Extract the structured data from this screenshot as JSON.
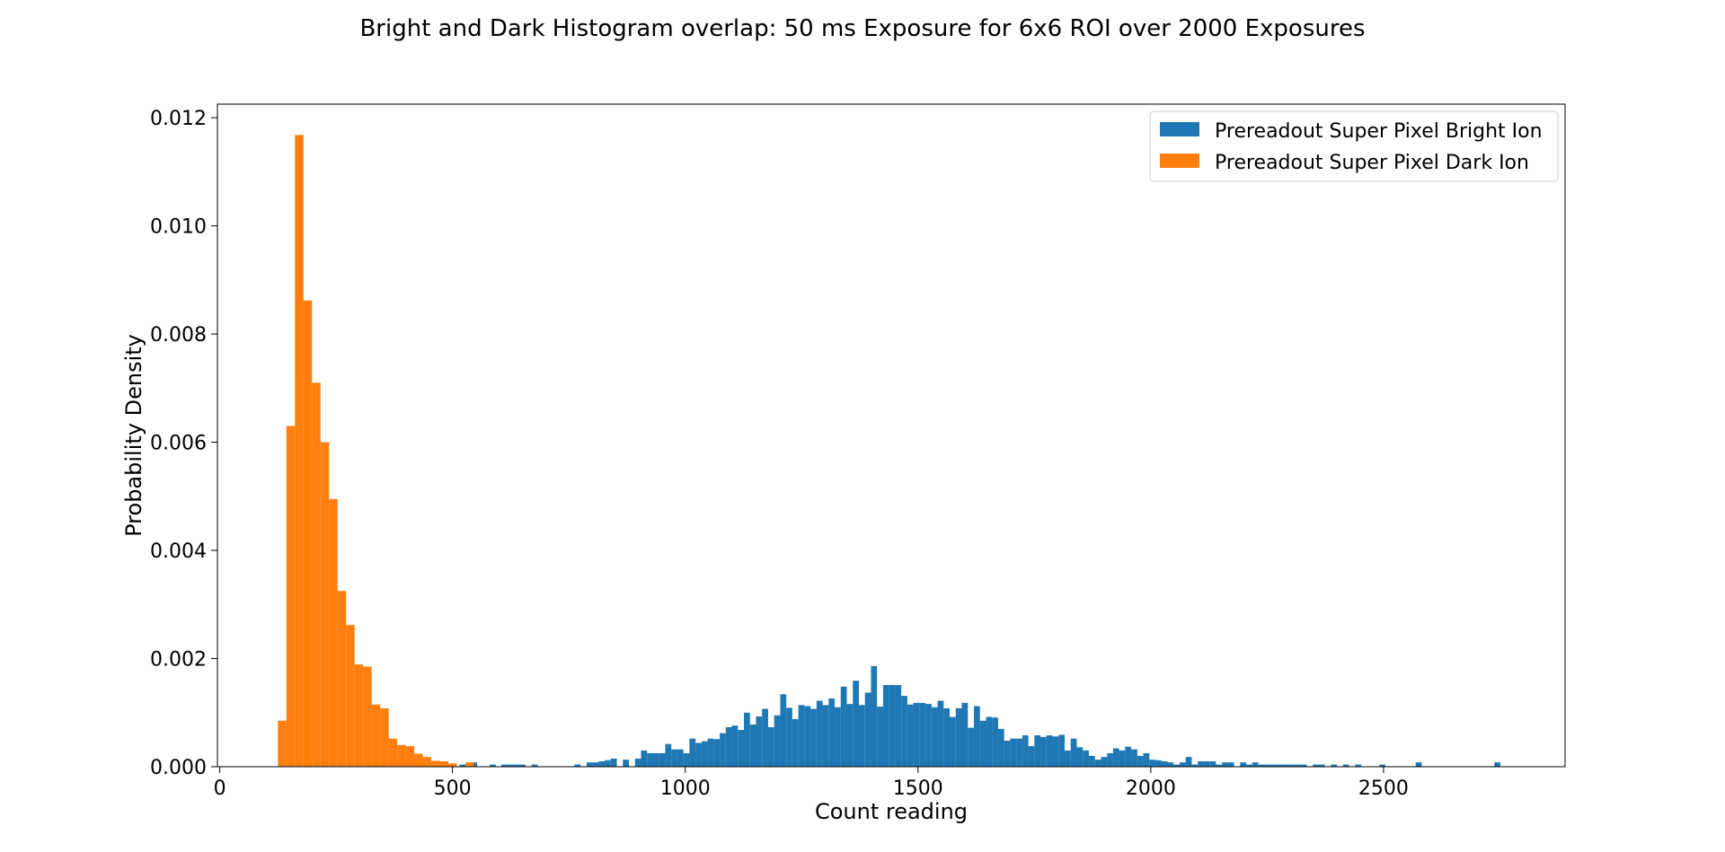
{
  "chart_data": {
    "type": "bar",
    "title": "Bright and Dark Histogram overlap: 50 ms Exposure for 6x6 ROI over 2000 Exposures",
    "xlabel": "Count reading",
    "ylabel": "Probability Density",
    "xlim": [
      -5,
      2890
    ],
    "ylim": [
      0,
      0.01225
    ],
    "xticks": [
      0,
      500,
      1000,
      1500,
      2000,
      2500
    ],
    "xtick_labels": [
      "0",
      "500",
      "1000",
      "1500",
      "2000",
      "2500"
    ],
    "yticks": [
      0,
      0.002,
      0.004,
      0.006,
      0.008,
      0.01,
      0.012
    ],
    "ytick_labels": [
      "0.000",
      "0.002",
      "0.004",
      "0.006",
      "0.008",
      "0.010",
      "0.012"
    ],
    "grid": false,
    "legend_position": "top-right",
    "series": [
      {
        "name": "Prereadout Super Pixel Bright Ion",
        "color": "#1f77b4",
        "bin_width": 13.0,
        "bins_start": [
          385,
          515,
          540,
          580,
          605,
          618,
          631,
          644,
          670,
          762,
          788,
          801,
          814,
          827,
          840,
          866,
          892,
          905,
          918,
          931,
          944,
          957,
          970,
          983,
          996,
          1009,
          1022,
          1035,
          1048,
          1061,
          1074,
          1087,
          1100,
          1113,
          1126,
          1139,
          1152,
          1165,
          1178,
          1191,
          1204,
          1217,
          1230,
          1243,
          1256,
          1269,
          1282,
          1295,
          1308,
          1321,
          1334,
          1347,
          1360,
          1373,
          1386,
          1399,
          1412,
          1425,
          1438,
          1451,
          1464,
          1477,
          1490,
          1503,
          1516,
          1529,
          1542,
          1555,
          1568,
          1581,
          1594,
          1607,
          1620,
          1633,
          1646,
          1659,
          1672,
          1685,
          1698,
          1711,
          1724,
          1737,
          1750,
          1763,
          1776,
          1789,
          1802,
          1815,
          1828,
          1841,
          1854,
          1867,
          1880,
          1893,
          1906,
          1919,
          1932,
          1945,
          1958,
          1971,
          1984,
          1997,
          2010,
          2023,
          2036,
          2049,
          2062,
          2075,
          2088,
          2101,
          2114,
          2127,
          2140,
          2153,
          2166,
          2192,
          2205,
          2218,
          2231,
          2244,
          2257,
          2270,
          2283,
          2296,
          2309,
          2322,
          2348,
          2361,
          2387,
          2413,
          2439,
          2491,
          2569,
          2738
        ],
        "values": [
          4e-05,
          4e-05,
          8e-05,
          4e-05,
          4e-05,
          4e-05,
          4e-05,
          4e-05,
          4e-05,
          4e-05,
          8e-05,
          8e-05,
          0.0001,
          0.00012,
          0.00015,
          0.00013,
          0.00015,
          0.0003,
          0.00025,
          0.00025,
          0.00025,
          0.00042,
          0.00032,
          0.00032,
          0.00025,
          0.00052,
          0.00044,
          0.00047,
          0.00052,
          0.00051,
          0.00062,
          0.00073,
          0.00076,
          0.00068,
          0.001,
          0.00078,
          0.00093,
          0.00107,
          0.00073,
          0.00095,
          0.00134,
          0.00109,
          0.00088,
          0.00114,
          0.00112,
          0.00107,
          0.00122,
          0.00114,
          0.00126,
          0.0011,
          0.00148,
          0.00116,
          0.00159,
          0.00114,
          0.00137,
          0.00186,
          0.00111,
          0.00151,
          0.00151,
          0.00151,
          0.00131,
          0.00115,
          0.00118,
          0.00118,
          0.00116,
          0.0011,
          0.00122,
          0.00108,
          0.00092,
          0.00108,
          0.00118,
          0.00072,
          0.00112,
          0.00085,
          0.00092,
          0.00091,
          0.0007,
          0.00048,
          0.00052,
          0.00052,
          0.00058,
          0.00038,
          0.00058,
          0.00055,
          0.00058,
          0.00056,
          0.00059,
          0.0003,
          0.00052,
          0.00036,
          0.0003,
          0.0002,
          0.00013,
          0.00018,
          0.00025,
          0.00034,
          0.0003,
          0.00037,
          0.00032,
          0.0002,
          0.00025,
          0.00013,
          0.00012,
          0.0001,
          8e-05,
          4e-05,
          8e-05,
          0.00018,
          4e-05,
          0.0001,
          0.0001,
          0.0001,
          4e-05,
          8e-05,
          8e-05,
          8e-05,
          4e-05,
          8e-05,
          4e-05,
          4e-05,
          4e-05,
          4e-05,
          4e-05,
          4e-05,
          4e-05,
          4e-05,
          4e-05,
          4e-05,
          4e-05,
          4e-05,
          4e-05,
          4e-05,
          8e-05,
          8e-05
        ]
      },
      {
        "name": "Prereadout Super Pixel Dark Ion",
        "color": "#ff7f0e",
        "bin_width": 18.3,
        "bins_start": [
          125,
          143.3,
          161.6,
          179.9,
          198.2,
          216.5,
          234.8,
          253.1,
          271.4,
          289.7,
          308,
          326.3,
          344.6,
          362.9,
          381.2,
          399.5,
          417.8,
          436.1,
          454.4,
          472.7,
          491,
          527.6
        ],
        "values": [
          0.00085,
          0.0063,
          0.01168,
          0.00862,
          0.0071,
          0.006,
          0.00495,
          0.00325,
          0.00262,
          0.00189,
          0.00185,
          0.00115,
          0.00108,
          0.00052,
          0.0004,
          0.00038,
          0.00024,
          0.00018,
          0.00011,
          0.0001,
          6e-05,
          8e-05
        ]
      }
    ]
  }
}
